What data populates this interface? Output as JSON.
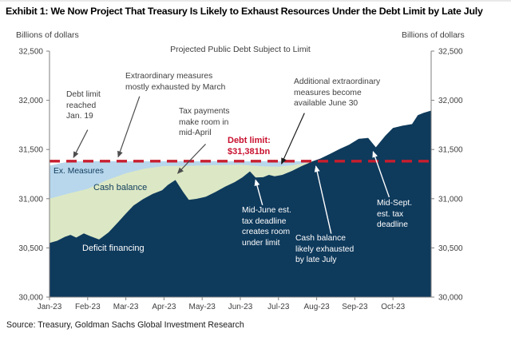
{
  "header": {
    "title": "Exhibit 1: We Now Project That Treasury Is Likely to Exhaust Resources Under the Debt Limit by Late July"
  },
  "axis_caption_left": "Billions of dollars",
  "axis_caption_right": "Billions of dollars",
  "source": "Source: Treasury, Goldman Sachs Global Investment Research",
  "colors": {
    "navy": "#0e3a5c",
    "cash_green": "#dce8c5",
    "measures_blue": "#b8d7ec",
    "limit_red": "#c81e2e",
    "annotation_gray": "#3f3f3f",
    "axis_gray": "#7f7f7f"
  },
  "chart_data": {
    "type": "area",
    "stacked": true,
    "series_note": "points are [month_offset_from_Jan-2023, cumulative stacked top in $bn]",
    "title": "Projected Public Debt Subject to Limit",
    "ylabel": "Billions of dollars",
    "x_domain": [
      0,
      10
    ],
    "y_domain": [
      30000,
      32500
    ],
    "grid": false,
    "y_ticks": [
      {
        "value": 32500,
        "label": "32,500"
      },
      {
        "value": 32000,
        "label": "32,000"
      },
      {
        "value": 31500,
        "label": "31,500"
      },
      {
        "value": 31000,
        "label": "31,000"
      },
      {
        "value": 30500,
        "label": "30,500"
      },
      {
        "value": 30000,
        "label": "30,000"
      }
    ],
    "x_ticks": [
      {
        "m": 0,
        "label": "Jan-23"
      },
      {
        "m": 1,
        "label": "Feb-23"
      },
      {
        "m": 2,
        "label": "Mar-23"
      },
      {
        "m": 3,
        "label": "Apr-23"
      },
      {
        "m": 4,
        "label": "May-23"
      },
      {
        "m": 5,
        "label": "Jun-23"
      },
      {
        "m": 6,
        "label": "Jul-23"
      },
      {
        "m": 7,
        "label": "Aug-23"
      },
      {
        "m": 8,
        "label": "Sep-23"
      },
      {
        "m": 9,
        "label": "Oct-23"
      }
    ],
    "debt_limit": {
      "value": 31381,
      "color": "#c81e2e"
    },
    "series": [
      {
        "name": "Ex. Measures",
        "color": "#b8d7ec",
        "points": [
          [
            0,
            31335
          ],
          [
            0.3,
            31362
          ],
          [
            0.6,
            31381
          ],
          [
            6.9,
            31381
          ],
          [
            7.1,
            31408
          ],
          [
            7.35,
            31455
          ],
          [
            7.6,
            31505
          ],
          [
            7.85,
            31548
          ],
          [
            8.1,
            31608
          ],
          [
            8.35,
            31618
          ],
          [
            8.55,
            31522
          ],
          [
            8.8,
            31640
          ],
          [
            9.0,
            31718
          ],
          [
            9.25,
            31742
          ],
          [
            9.5,
            31758
          ],
          [
            9.65,
            31848
          ],
          [
            9.8,
            31872
          ],
          [
            10,
            31895
          ]
        ]
      },
      {
        "name": "Cash balance",
        "color": "#dce8c5",
        "points": [
          [
            0,
            31000
          ],
          [
            0.5,
            31052
          ],
          [
            1.0,
            31100
          ],
          [
            1.5,
            31188
          ],
          [
            2.0,
            31258
          ],
          [
            2.5,
            31306
          ],
          [
            3.0,
            31332
          ],
          [
            3.5,
            31334
          ],
          [
            4.0,
            31338
          ],
          [
            4.5,
            31342
          ],
          [
            5.0,
            31345
          ],
          [
            5.3,
            31338
          ],
          [
            5.6,
            31328
          ],
          [
            6.0,
            31326
          ],
          [
            6.4,
            31342
          ],
          [
            6.7,
            31362
          ],
          [
            6.9,
            31381
          ],
          [
            7.1,
            31408
          ],
          [
            7.35,
            31455
          ],
          [
            7.6,
            31505
          ],
          [
            7.85,
            31548
          ],
          [
            8.1,
            31608
          ],
          [
            8.35,
            31618
          ],
          [
            8.55,
            31522
          ],
          [
            8.8,
            31640
          ],
          [
            9.0,
            31718
          ],
          [
            9.25,
            31742
          ],
          [
            9.5,
            31758
          ],
          [
            9.65,
            31848
          ],
          [
            9.8,
            31872
          ],
          [
            10,
            31895
          ]
        ]
      },
      {
        "name": "Deficit financing",
        "color": "#0e3a5c",
        "points": [
          [
            0,
            30550
          ],
          [
            0.2,
            30572
          ],
          [
            0.4,
            30612
          ],
          [
            0.55,
            30632
          ],
          [
            0.7,
            30605
          ],
          [
            0.9,
            30648
          ],
          [
            1.05,
            30622
          ],
          [
            1.3,
            30585
          ],
          [
            1.55,
            30658
          ],
          [
            1.8,
            30762
          ],
          [
            2.0,
            30848
          ],
          [
            2.2,
            30930
          ],
          [
            2.45,
            30995
          ],
          [
            2.7,
            31048
          ],
          [
            2.95,
            31085
          ],
          [
            3.1,
            31140
          ],
          [
            3.3,
            31190
          ],
          [
            3.5,
            31070
          ],
          [
            3.65,
            30988
          ],
          [
            3.85,
            30998
          ],
          [
            4.1,
            31020
          ],
          [
            4.35,
            31068
          ],
          [
            4.6,
            31122
          ],
          [
            4.85,
            31168
          ],
          [
            5.05,
            31215
          ],
          [
            5.25,
            31278
          ],
          [
            5.4,
            31215
          ],
          [
            5.6,
            31218
          ],
          [
            5.75,
            31242
          ],
          [
            5.9,
            31228
          ],
          [
            6.1,
            31242
          ],
          [
            6.35,
            31282
          ],
          [
            6.6,
            31330
          ],
          [
            6.9,
            31381
          ],
          [
            7.1,
            31408
          ],
          [
            7.35,
            31455
          ],
          [
            7.6,
            31505
          ],
          [
            7.85,
            31548
          ],
          [
            8.1,
            31608
          ],
          [
            8.35,
            31618
          ],
          [
            8.55,
            31522
          ],
          [
            8.8,
            31640
          ],
          [
            9.0,
            31718
          ],
          [
            9.25,
            31742
          ],
          [
            9.5,
            31758
          ],
          [
            9.65,
            31848
          ],
          [
            9.8,
            31872
          ],
          [
            10,
            31895
          ]
        ]
      }
    ],
    "arrows": [
      {
        "from": [
          1.0,
          31700
        ],
        "to": [
          0.63,
          31420
        ],
        "color": "dark"
      },
      {
        "from": [
          2.36,
          32040
        ],
        "to": [
          1.8,
          31425
        ],
        "color": "dark"
      },
      {
        "from": [
          4.09,
          31555
        ],
        "to": [
          3.36,
          31258
        ],
        "color": "dark"
      },
      {
        "from": [
          6.68,
          31870
        ],
        "to": [
          6.08,
          31355
        ],
        "color": "black"
      },
      {
        "from": [
          5.58,
          30935
        ],
        "to": [
          5.4,
          31190
        ],
        "color": "white"
      },
      {
        "from": [
          7.38,
          30645
        ],
        "to": [
          6.98,
          31330
        ],
        "color": "white"
      },
      {
        "from": [
          8.9,
          31015
        ],
        "to": [
          8.48,
          31478
        ],
        "color": "white"
      }
    ],
    "annotations": {
      "debt_limit_reached": {
        "text": "Debt limit\nreached\nJan. 19"
      },
      "extraordinary": {
        "text": "Extraordinary measures\nmostly exhausted by March"
      },
      "tax_payments": {
        "text": "Tax payments\nmake room in\nmid-April"
      },
      "debt_limit_label": {
        "text": "Debt limit:\n$31,381bn"
      },
      "additional_measures": {
        "text": "Additional extraordinary\nmeasures become\navailable June 30"
      },
      "mid_june": {
        "text": "Mid-June est.\ntax deadline\ncreates room\nunder limit"
      },
      "cash_exhausted": {
        "text": "Cash balance\nlikely exhausted\nby late July"
      },
      "mid_sept": {
        "text": "Mid-Sept.\nest. tax\ndeadline"
      },
      "ex_measures_label": {
        "text": "Ex. Measures"
      },
      "cash_balance_label": {
        "text": "Cash balance"
      },
      "deficit_financing_label": {
        "text": "Deficit financing"
      }
    }
  }
}
